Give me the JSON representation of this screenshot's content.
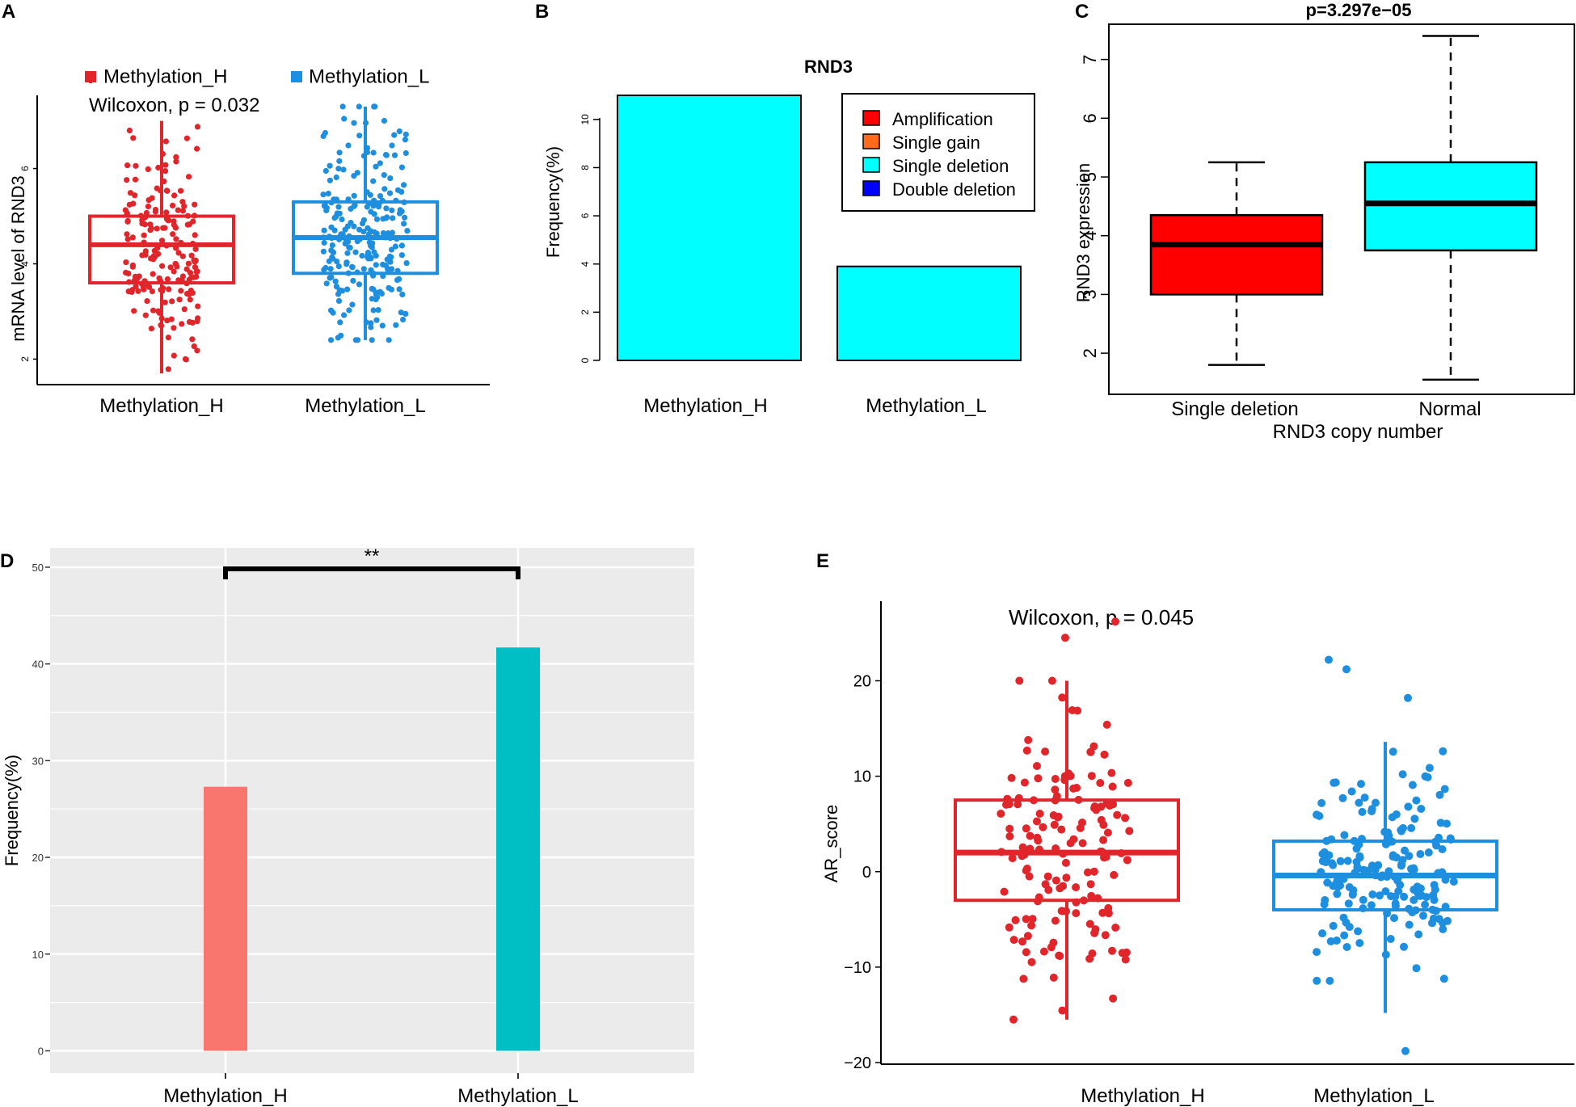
{
  "colors": {
    "high": "#e0262b",
    "low": "#1e8fde",
    "cyan": "#00ffff",
    "red_box": "#ff0000",
    "salmon": "#f8766d",
    "teal": "#00bfc4",
    "ggbg": "#ebebeb",
    "amp": "#ff0000",
    "gain": "#ff6a1a",
    "del": "#00ffff",
    "ddel": "#0000ff"
  },
  "chart_data": [
    {
      "panel": "A",
      "type": "boxplot",
      "legend": [
        "Methylation_H",
        "Methylation_L"
      ],
      "annotation": "Wilcoxon, p = 0.032",
      "ylabel": "mRNA level of RND3",
      "xlabel": "",
      "categories": [
        "Methylation_H",
        "Methylation_L"
      ],
      "yticks": [
        2,
        4,
        6
      ],
      "ylim": [
        1.6,
        7.4
      ],
      "boxes": [
        {
          "name": "Methylation_H",
          "min": 1.7,
          "q1": 3.6,
          "median": 4.4,
          "q3": 5.0,
          "max": 7.0
        },
        {
          "name": "Methylation_L",
          "min": 2.4,
          "q1": 3.8,
          "median": 4.55,
          "q3": 5.3,
          "max": 7.3
        }
      ]
    },
    {
      "panel": "B",
      "type": "bar",
      "title": "RND3",
      "ylabel": "Frequency(%)",
      "categories": [
        "Methylation_H",
        "Methylation_L"
      ],
      "values": [
        11.0,
        3.9
      ],
      "yticks": [
        0,
        2,
        4,
        6,
        8,
        10
      ],
      "ylim": [
        0,
        11
      ],
      "legend": [
        "Amplification",
        "Single gain",
        "Single deletion",
        "Double deletion"
      ]
    },
    {
      "panel": "C",
      "type": "boxplot",
      "title": "p=3.297e−05",
      "ylabel": "RND3 expression",
      "xlabel": "RND3 copy number",
      "categories": [
        "Single deletion",
        "Normal"
      ],
      "yticks": [
        2,
        3,
        4,
        5,
        6,
        7
      ],
      "ylim": [
        1.3,
        7.6
      ],
      "boxes": [
        {
          "name": "Single deletion",
          "min": 1.8,
          "q1": 3.0,
          "median": 3.85,
          "q3": 4.35,
          "max": 5.25
        },
        {
          "name": "Normal",
          "min": 1.55,
          "q1": 3.75,
          "median": 4.55,
          "q3": 5.25,
          "max": 7.4
        }
      ]
    },
    {
      "panel": "D",
      "type": "bar",
      "ylabel": "Frequency(%)",
      "categories": [
        "Methylation_H",
        "Methylation_L"
      ],
      "values": [
        27.3,
        41.7
      ],
      "yticks": [
        0,
        10,
        20,
        30,
        40,
        50
      ],
      "ylim": [
        -2.3,
        52
      ],
      "significance": "**"
    },
    {
      "panel": "E",
      "type": "boxplot",
      "annotation": "Wilcoxon, p = 0.045",
      "ylabel": "AR_score",
      "categories": [
        "Methylation_H",
        "Methylation_L"
      ],
      "yticks": [
        -20,
        -10,
        0,
        10,
        20
      ],
      "ylim": [
        -20,
        28
      ],
      "boxes": [
        {
          "name": "Methylation_H",
          "min": -15.5,
          "q1": -3.0,
          "median": 2.0,
          "q3": 7.5,
          "max": 20.0
        },
        {
          "name": "Methylation_L",
          "min": -14.8,
          "q1": -4.0,
          "median": -0.4,
          "q3": 3.2,
          "max": 13.6
        }
      ]
    }
  ]
}
